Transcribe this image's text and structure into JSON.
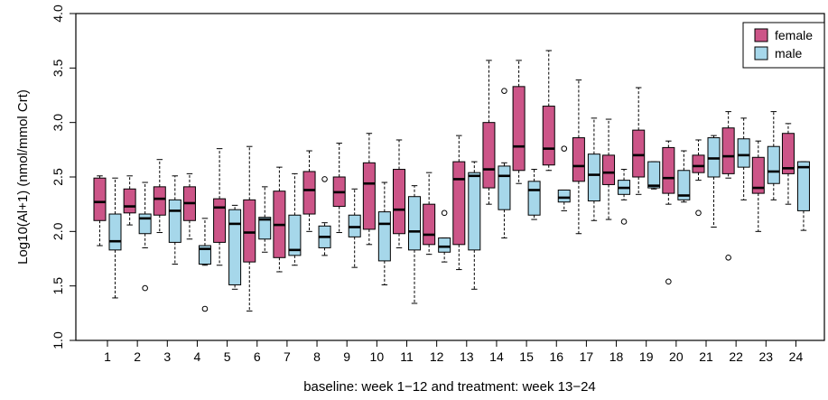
{
  "chart_data": {
    "type": "boxplot",
    "title": "",
    "xlabel": "baseline: week 1−12 and treatment: week 13−24",
    "ylabel": "Log10(Al+1) (nmol/mmol Crt)",
    "ylim": [
      1.0,
      4.0
    ],
    "yticks": [
      "1.0",
      "1.5",
      "2.0",
      "2.5",
      "3.0",
      "3.5",
      "4.0"
    ],
    "categories": [
      "1",
      "2",
      "3",
      "4",
      "5",
      "6",
      "7",
      "8",
      "9",
      "10",
      "11",
      "12",
      "13",
      "14",
      "15",
      "16",
      "17",
      "18",
      "19",
      "20",
      "21",
      "22",
      "23",
      "24"
    ],
    "legend": {
      "position": "top-right"
    },
    "series": [
      {
        "name": "female",
        "color": "#cc5588",
        "boxes": [
          {
            "min": 1.87,
            "q1": 2.1,
            "median": 2.27,
            "q3": 2.49,
            "max": 2.51,
            "outliers": []
          },
          {
            "min": 2.06,
            "q1": 2.17,
            "median": 2.23,
            "q3": 2.39,
            "max": 2.51,
            "outliers": []
          },
          {
            "min": 1.99,
            "q1": 2.15,
            "median": 2.3,
            "q3": 2.41,
            "max": 2.66,
            "outliers": []
          },
          {
            "min": 1.93,
            "q1": 2.1,
            "median": 2.26,
            "q3": 2.41,
            "max": 2.53,
            "outliers": []
          },
          {
            "min": 1.69,
            "q1": 1.9,
            "median": 2.22,
            "q3": 2.3,
            "max": 2.76,
            "outliers": []
          },
          {
            "min": 1.27,
            "q1": 1.72,
            "median": 1.99,
            "q3": 2.29,
            "max": 2.78,
            "outliers": []
          },
          {
            "min": 1.63,
            "q1": 1.76,
            "median": 2.06,
            "q3": 2.37,
            "max": 2.59,
            "outliers": []
          },
          {
            "min": 2.0,
            "q1": 2.16,
            "median": 2.38,
            "q3": 2.55,
            "max": 2.74,
            "outliers": []
          },
          {
            "min": 1.99,
            "q1": 2.23,
            "median": 2.36,
            "q3": 2.5,
            "max": 2.81,
            "outliers": []
          },
          {
            "min": 1.88,
            "q1": 2.02,
            "median": 2.44,
            "q3": 2.63,
            "max": 2.9,
            "outliers": []
          },
          {
            "min": 1.85,
            "q1": 1.98,
            "median": 2.2,
            "q3": 2.57,
            "max": 2.84,
            "outliers": []
          },
          {
            "min": 1.79,
            "q1": 1.88,
            "median": 1.97,
            "q3": 2.25,
            "max": 2.54,
            "outliers": []
          },
          {
            "min": 1.65,
            "q1": 1.88,
            "median": 2.48,
            "q3": 2.64,
            "max": 2.88,
            "outliers": []
          },
          {
            "min": 2.25,
            "q1": 2.4,
            "median": 2.57,
            "q3": 3.0,
            "max": 3.57,
            "outliers": []
          },
          {
            "min": 2.44,
            "q1": 2.56,
            "median": 2.78,
            "q3": 3.33,
            "max": 3.57,
            "outliers": []
          },
          {
            "min": 2.56,
            "q1": 2.61,
            "median": 2.76,
            "q3": 3.15,
            "max": 3.66,
            "outliers": []
          },
          {
            "min": 1.98,
            "q1": 2.46,
            "median": 2.6,
            "q3": 2.86,
            "max": 3.39,
            "outliers": []
          },
          {
            "min": 2.11,
            "q1": 2.43,
            "median": 2.54,
            "q3": 2.7,
            "max": 3.03,
            "outliers": []
          },
          {
            "min": 2.34,
            "q1": 2.5,
            "median": 2.7,
            "q3": 2.93,
            "max": 3.32,
            "outliers": []
          },
          {
            "min": 2.25,
            "q1": 2.35,
            "median": 2.49,
            "q3": 2.77,
            "max": 2.83,
            "outliers": [
              1.54
            ]
          },
          {
            "min": 2.47,
            "q1": 2.54,
            "median": 2.6,
            "q3": 2.7,
            "max": 2.84,
            "outliers": [
              2.17
            ]
          },
          {
            "min": 2.49,
            "q1": 2.53,
            "median": 2.69,
            "q3": 2.95,
            "max": 3.1,
            "outliers": [
              1.76
            ]
          },
          {
            "min": 2.0,
            "q1": 2.35,
            "median": 2.4,
            "q3": 2.68,
            "max": 2.83,
            "outliers": []
          },
          {
            "min": 2.25,
            "q1": 2.53,
            "median": 2.58,
            "q3": 2.9,
            "max": 2.99,
            "outliers": []
          }
        ]
      },
      {
        "name": "male",
        "color": "#a6d7ea",
        "boxes": [
          {
            "min": 1.39,
            "q1": 1.83,
            "median": 1.91,
            "q3": 2.16,
            "max": 2.49,
            "outliers": []
          },
          {
            "min": 1.85,
            "q1": 1.98,
            "median": 2.12,
            "q3": 2.16,
            "max": 2.45,
            "outliers": [
              1.48
            ]
          },
          {
            "min": 1.7,
            "q1": 1.9,
            "median": 2.19,
            "q3": 2.29,
            "max": 2.51,
            "outliers": []
          },
          {
            "min": 1.69,
            "q1": 1.7,
            "median": 1.84,
            "q3": 1.87,
            "max": 2.12,
            "outliers": [
              1.29
            ]
          },
          {
            "min": 1.47,
            "q1": 1.51,
            "median": 2.07,
            "q3": 2.2,
            "max": 2.24,
            "outliers": []
          },
          {
            "min": 1.81,
            "q1": 1.93,
            "median": 2.11,
            "q3": 2.13,
            "max": 2.41,
            "outliers": []
          },
          {
            "min": 1.69,
            "q1": 1.78,
            "median": 1.83,
            "q3": 2.15,
            "max": 2.53,
            "outliers": []
          },
          {
            "min": 1.78,
            "q1": 1.85,
            "median": 1.95,
            "q3": 2.05,
            "max": 2.08,
            "outliers": [
              2.48
            ]
          },
          {
            "min": 1.67,
            "q1": 1.95,
            "median": 2.04,
            "q3": 2.15,
            "max": 2.39,
            "outliers": []
          },
          {
            "min": 1.51,
            "q1": 1.73,
            "median": 2.07,
            "q3": 2.18,
            "max": 2.45,
            "outliers": []
          },
          {
            "min": 1.34,
            "q1": 1.83,
            "median": 2.0,
            "q3": 2.32,
            "max": 2.42,
            "outliers": []
          },
          {
            "min": 1.72,
            "q1": 1.81,
            "median": 1.86,
            "q3": 1.94,
            "max": 1.94,
            "outliers": [
              2.17
            ]
          },
          {
            "min": 1.47,
            "q1": 1.83,
            "median": 2.51,
            "q3": 2.54,
            "max": 2.64,
            "outliers": []
          },
          {
            "min": 1.94,
            "q1": 2.2,
            "median": 2.51,
            "q3": 2.6,
            "max": 2.63,
            "outliers": [
              3.29
            ]
          },
          {
            "min": 2.11,
            "q1": 2.15,
            "median": 2.38,
            "q3": 2.46,
            "max": 2.57,
            "outliers": []
          },
          {
            "min": 2.19,
            "q1": 2.27,
            "median": 2.31,
            "q3": 2.38,
            "max": 2.38,
            "outliers": [
              2.76
            ]
          },
          {
            "min": 2.1,
            "q1": 2.28,
            "median": 2.52,
            "q3": 2.71,
            "max": 3.04,
            "outliers": []
          },
          {
            "min": 2.29,
            "q1": 2.34,
            "median": 2.4,
            "q3": 2.47,
            "max": 2.57,
            "outliers": [
              2.09
            ]
          },
          {
            "min": 2.39,
            "q1": 2.4,
            "median": 2.42,
            "q3": 2.64,
            "max": 2.64,
            "outliers": []
          },
          {
            "min": 2.27,
            "q1": 2.29,
            "median": 2.33,
            "q3": 2.56,
            "max": 2.74,
            "outliers": []
          },
          {
            "min": 2.04,
            "q1": 2.5,
            "median": 2.67,
            "q3": 2.86,
            "max": 2.88,
            "outliers": []
          },
          {
            "min": 2.29,
            "q1": 2.59,
            "median": 2.7,
            "q3": 2.85,
            "max": 3.04,
            "outliers": []
          },
          {
            "min": 2.29,
            "q1": 2.44,
            "median": 2.55,
            "q3": 2.78,
            "max": 3.1,
            "outliers": []
          },
          {
            "min": 2.01,
            "q1": 2.19,
            "median": 2.59,
            "q3": 2.64,
            "max": 2.64,
            "outliers": []
          }
        ]
      }
    ]
  }
}
